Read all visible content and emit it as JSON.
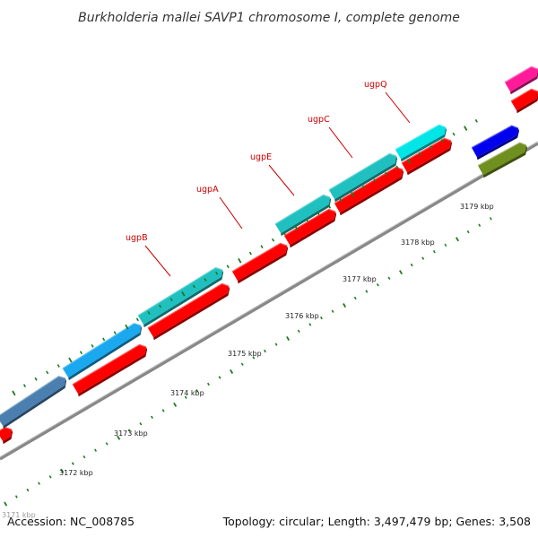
{
  "title": "Burkholderia mallei SAVP1 chromosome I, complete genome",
  "accession": "Accession: NC_008785",
  "summary": "Topology: circular; Length: 3,497,479 bp; Genes: 3,508",
  "edge_label": "3171 kbp",
  "kbp_labels": [
    "3172 kbp",
    "3173 kbp",
    "3174 kbp",
    "3175 kbp",
    "3176 kbp",
    "3177 kbp",
    "3178 kbp",
    "3179 kbp"
  ],
  "gene_labels": [
    "ugpB",
    "ugpA",
    "ugpE",
    "ugpC",
    "ugpQ"
  ],
  "colors": {
    "backbone": "#888888",
    "tick": "#1e7a1e",
    "red_feature": "#ff0000",
    "gene_label": "#cc0000",
    "cyan": "#00e5e5",
    "teal": "#20c0c0",
    "sky": "#1aa8ee",
    "steel": "#4a7fb0",
    "magenta": "#ff1a99",
    "blue": "#0000ee",
    "olive": "#6f8f1f"
  }
}
